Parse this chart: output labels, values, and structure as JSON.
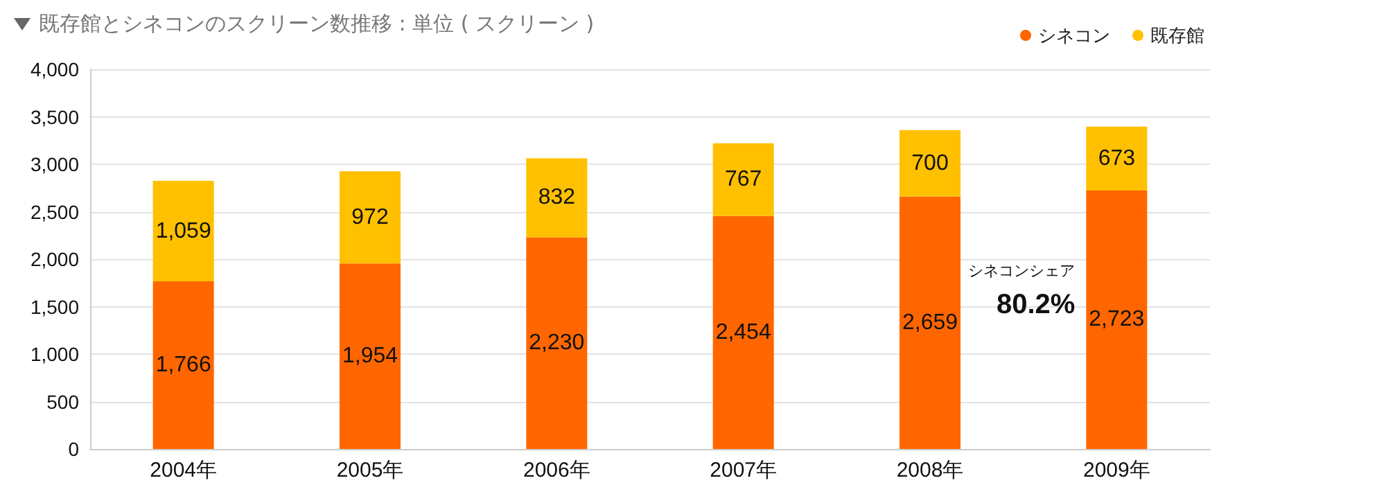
{
  "chart_data": {
    "type": "bar",
    "title": "既存館とシネコンのスクリーン数推移 : 単位 ( スクリーン )",
    "stacked": true,
    "categories": [
      "2004年",
      "2005年",
      "2006年",
      "2007年",
      "2008年",
      "2009年"
    ],
    "series": [
      {
        "name": "シネコン",
        "color": "#ff6600",
        "values": [
          1766,
          1954,
          2230,
          2454,
          2659,
          2723
        ],
        "value_labels": [
          "1,766",
          "1,954",
          "2,230",
          "2,454",
          "2,659",
          "2,723"
        ]
      },
      {
        "name": "既存館",
        "color": "#ffc000",
        "values": [
          1059,
          972,
          832,
          767,
          700,
          673
        ],
        "value_labels": [
          "1,059",
          "972",
          "832",
          "767",
          "700",
          "673"
        ]
      }
    ],
    "ylim": [
      0,
      4000
    ],
    "yticks": [
      0,
      500,
      {
        "value": 1000,
        "label": "1,000"
      },
      {
        "value": 1500,
        "label": "1,500"
      },
      {
        "value": 2000,
        "label": "2,000"
      },
      {
        "value": 2500,
        "label": "2,500"
      },
      {
        "value": 3000,
        "label": "3,000"
      },
      {
        "value": 3500,
        "label": "3,500"
      },
      {
        "value": 4000,
        "label": "4,000"
      }
    ],
    "grid": "y",
    "legend": "top right",
    "annotations": [
      "シネコンシェア",
      "80.2%"
    ]
  }
}
